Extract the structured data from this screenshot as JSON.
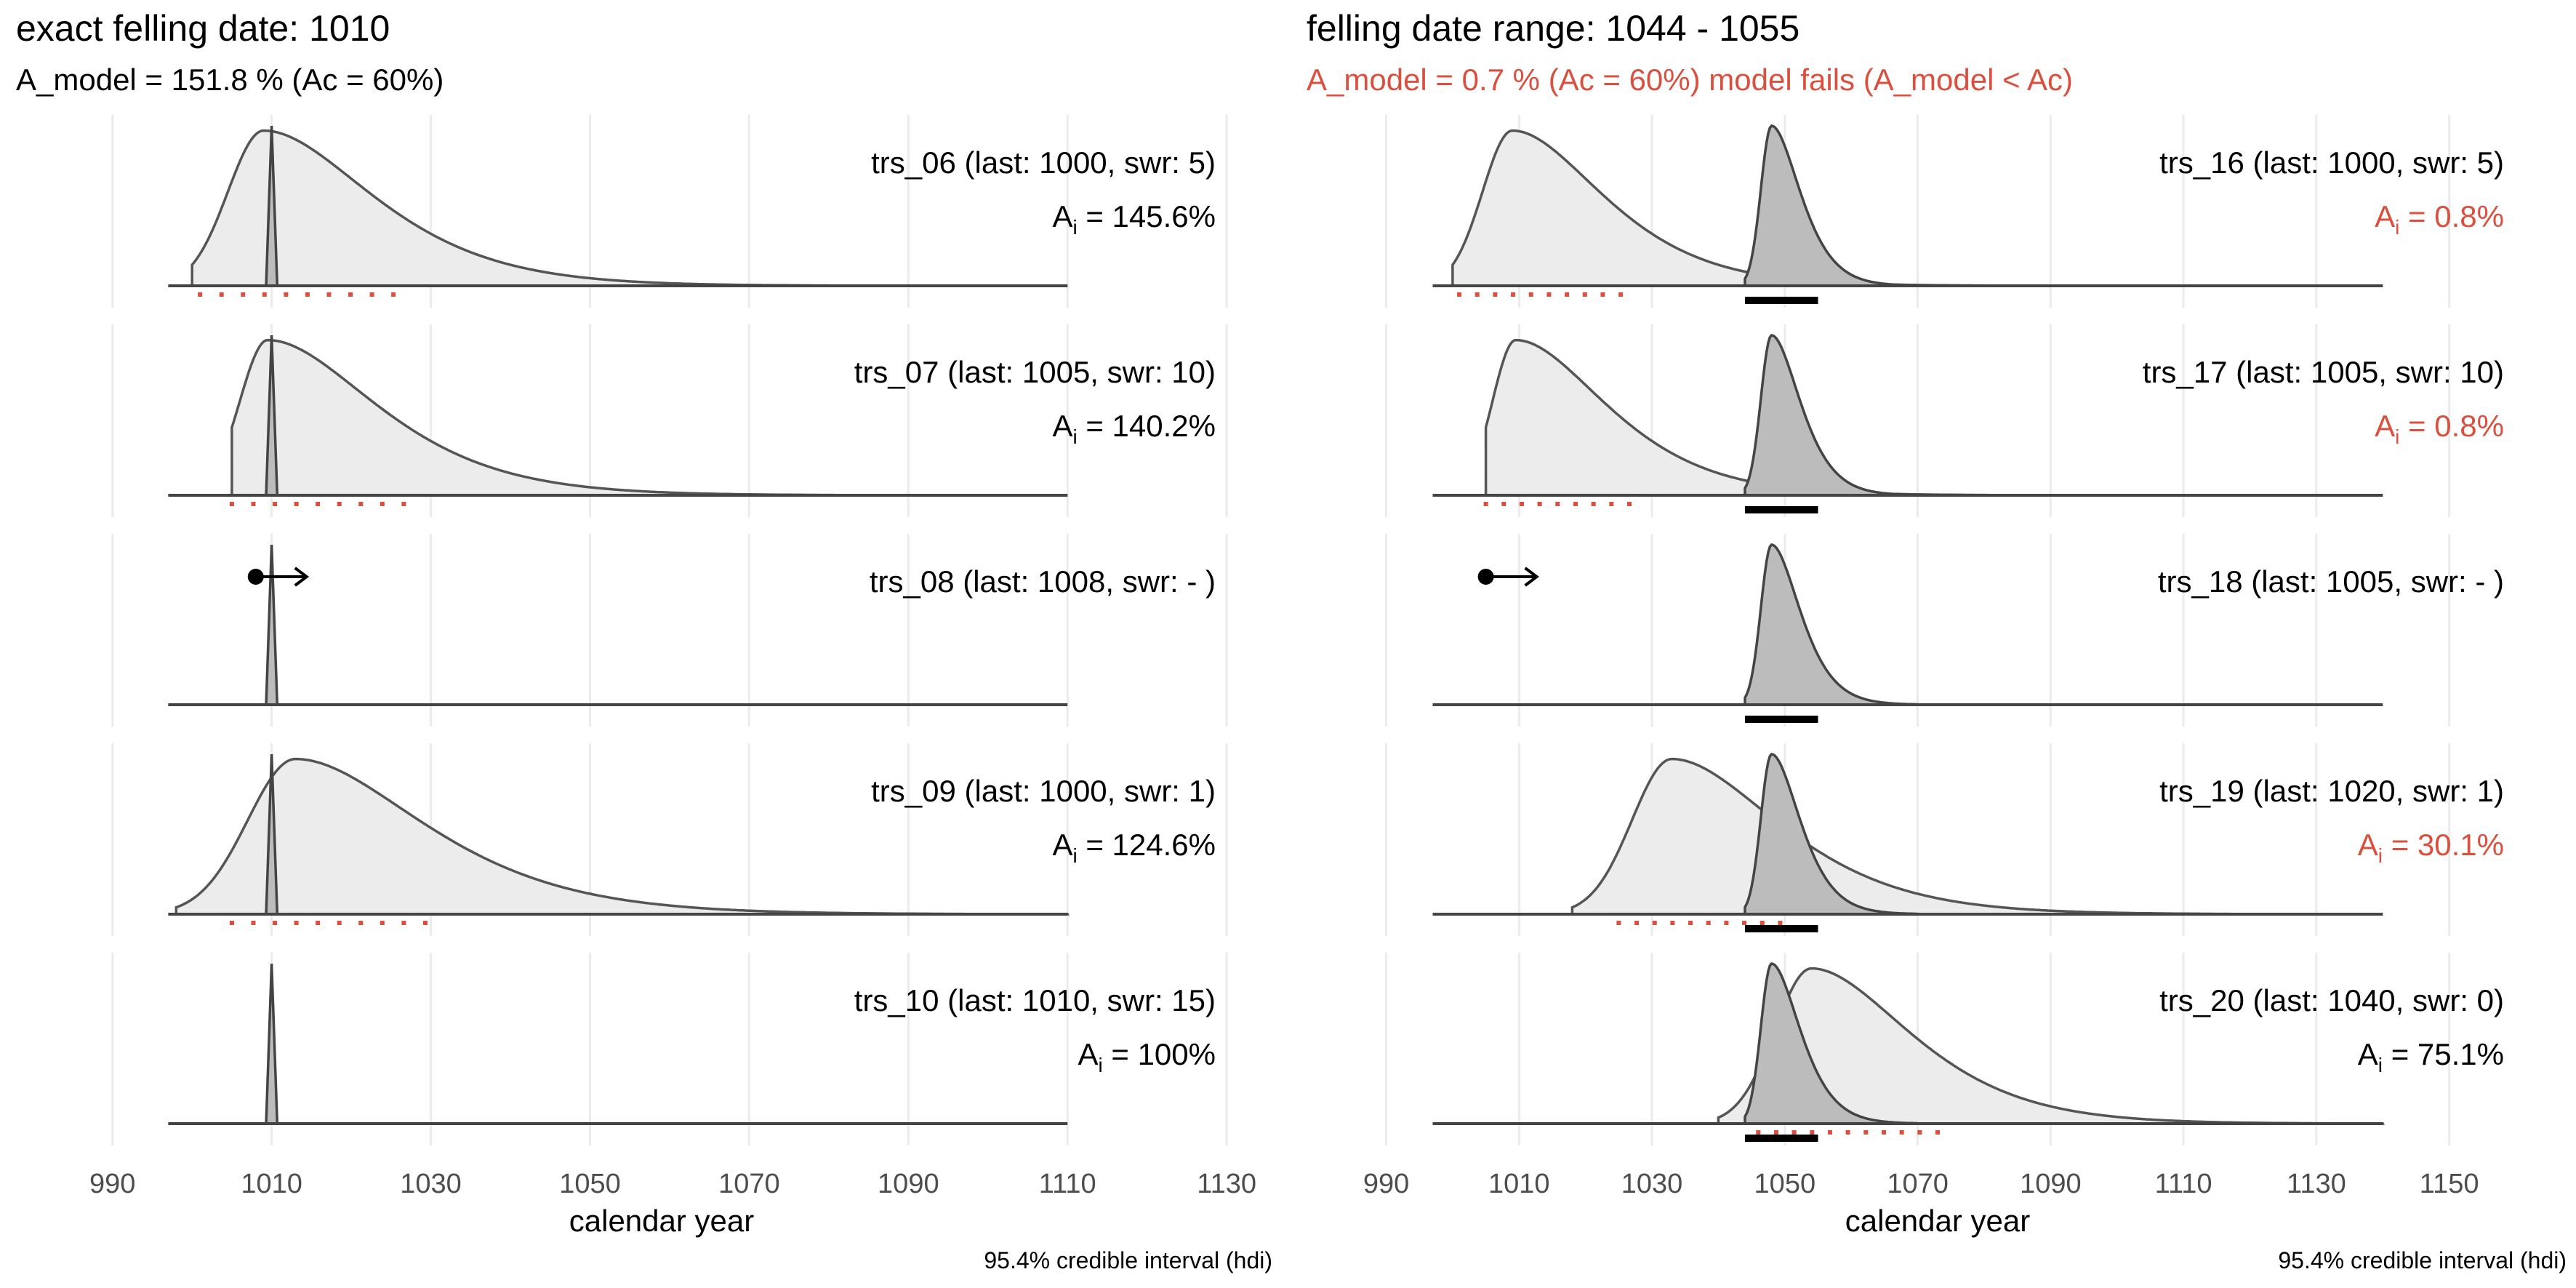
{
  "chart_data": [
    {
      "type": "area",
      "title": "exact felling date: 1010",
      "subtitle": "A_model =  151.8 % (Ac = 60%)",
      "subtitle_color": "#000000",
      "xlabel": "calendar year",
      "caption": "95.4% credible interval (hdi)",
      "xlim": [
        985,
        1133
      ],
      "x_tick_labels": [
        "990",
        "1010",
        "1030",
        "1050",
        "1070",
        "1090",
        "1110",
        "1130"
      ],
      "x_ticks": [
        990,
        1010,
        1030,
        1050,
        1070,
        1090,
        1110,
        1130
      ],
      "data_xrange": [
        997,
        1110
      ],
      "model": {
        "type": "exact",
        "center": 1010,
        "sd": 0.35
      },
      "hdi_bar": null,
      "panels": [
        {
          "label": "trs_06 (last: 1000, swr: 5)",
          "ai": "145.6%",
          "ai_color": "#000000",
          "prior": {
            "start": 1000,
            "mode": 1009,
            "spread": 4.5,
            "tail": 11
          },
          "hdi": [
            1001,
            1027
          ],
          "pith_arrow": null
        },
        {
          "label": "trs_07 (last: 1005, swr: 10)",
          "ai": "140.2%",
          "ai_color": "#000000",
          "prior": {
            "start": 1005,
            "mode": 1009.5,
            "spread": 3.5,
            "tail": 11
          },
          "hdi": [
            1005,
            1028
          ],
          "pith_arrow": null
        },
        {
          "label": "trs_08 (last: 1008, swr: - )",
          "ai": "",
          "ai_color": "#000000",
          "prior": null,
          "hdi": null,
          "pith_arrow": {
            "x": 1008
          }
        },
        {
          "label": "trs_09 (last: 1000, swr: 1)",
          "ai": "124.6%",
          "ai_color": "#000000",
          "prior": {
            "start": 998,
            "mode": 1013,
            "spread": 6,
            "tail": 13
          },
          "hdi": [
            1005,
            1031
          ],
          "pith_arrow": null
        },
        {
          "label": "trs_10 (last: 1010, swr: 15)",
          "ai": "100%",
          "ai_color": "#000000",
          "prior": null,
          "hdi": null,
          "pith_arrow": null
        }
      ]
    },
    {
      "type": "area",
      "title": "felling date range: 1044 -  1055",
      "subtitle": "A_model =  0.7 % (Ac = 60%) model fails (A_model < Ac)",
      "subtitle_color": "#d9503f",
      "xlabel": "calendar year",
      "caption": "95.4% credible interval (hdi)",
      "xlim": [
        986,
        1160
      ],
      "x_tick_labels": [
        "990",
        "1010",
        "1030",
        "1050",
        "1070",
        "1090",
        "1110",
        "1130",
        "1150"
      ],
      "x_ticks": [
        990,
        1010,
        1030,
        1050,
        1070,
        1090,
        1110,
        1130,
        1150
      ],
      "data_xrange": [
        997,
        1140
      ],
      "model": {
        "type": "range",
        "start": 1044,
        "mode": 1048,
        "spread": 1.6,
        "tail": 3.5
      },
      "hdi_bar": [
        1044,
        1055
      ],
      "panels": [
        {
          "label": "trs_16 (last: 1000, swr: 5)",
          "ai": "0.8%",
          "ai_color": "#d9503f",
          "prior": {
            "start": 1000,
            "mode": 1009,
            "spread": 4.5,
            "tail": 11
          },
          "hdi": [
            1001,
            1027
          ],
          "pith_arrow": null
        },
        {
          "label": "trs_17 (last: 1005, swr: 10)",
          "ai": "0.8%",
          "ai_color": "#d9503f",
          "prior": {
            "start": 1005,
            "mode": 1009.5,
            "spread": 3.5,
            "tail": 11
          },
          "hdi": [
            1005,
            1028
          ],
          "pith_arrow": null
        },
        {
          "label": "trs_18 (last: 1005, swr: - )",
          "ai": "",
          "ai_color": "#000000",
          "prior": null,
          "hdi": null,
          "pith_arrow": {
            "x": 1005
          }
        },
        {
          "label": "trs_19 (last: 1020, swr: 1)",
          "ai": "30.1%",
          "ai_color": "#d9503f",
          "prior": {
            "start": 1018,
            "mode": 1033,
            "spread": 6,
            "tail": 13
          },
          "hdi": [
            1025,
            1051
          ],
          "pith_arrow": null
        },
        {
          "label": "trs_20 (last: 1040, swr: 0)",
          "ai": "75.1%",
          "ai_color": "#000000",
          "prior": {
            "start": 1040,
            "mode": 1054,
            "spread": 5.5,
            "tail": 12
          },
          "hdi": [
            1046,
            1073
          ],
          "pith_arrow": null
        }
      ]
    }
  ]
}
